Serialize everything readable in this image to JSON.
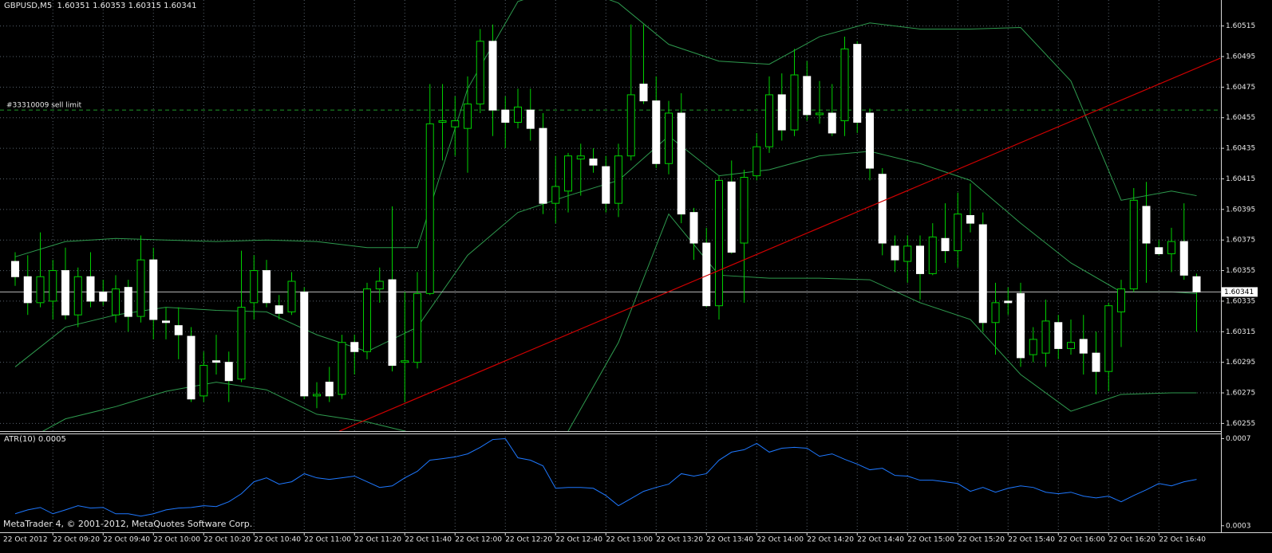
{
  "chart_data": [
    {
      "type": "candlestick",
      "title": "GBPUSD,M5  1.60351 1.60353 1.60315 1.60341",
      "categories": [
        "22 Oct 2012",
        null,
        null,
        "22 Oct 09:20",
        null,
        null,
        null,
        "22 Oct 09:40",
        null,
        null,
        null,
        "22 Oct 10:00",
        null,
        null,
        null,
        "22 Oct 10:20",
        null,
        null,
        null,
        "22 Oct 10:40",
        null,
        null,
        null,
        "22 Oct 11:00",
        null,
        null,
        null,
        "22 Oct 11:20",
        null,
        null,
        null,
        "22 Oct 11:40",
        null,
        null,
        null,
        "22 Oct 12:00",
        null,
        null,
        null,
        "22 Oct 12:20",
        null,
        null,
        null,
        "22 Oct 12:40",
        null,
        null,
        null,
        "22 Oct 13:00",
        null,
        null,
        null,
        "22 Oct 13:20",
        null,
        null,
        null,
        "22 Oct 13:40",
        null,
        null,
        null,
        "22 Oct 14:00",
        null,
        null,
        null,
        "22 Oct 14:20",
        null,
        null,
        null,
        "22 Oct 14:40",
        null,
        null,
        null,
        "22 Oct 15:00",
        null,
        null,
        null,
        "22 Oct 15:20",
        null,
        null,
        null,
        "22 Oct 15:40",
        null,
        null,
        null,
        "22 Oct 16:00",
        null,
        null,
        null,
        "22 Oct 16:20",
        null,
        null,
        null,
        "22 Oct 16:40",
        null,
        null,
        null
      ],
      "open": [
        1.60361,
        1.60351,
        1.60334,
        1.60335,
        1.60355,
        1.60326,
        1.60351,
        1.60341,
        1.60326,
        1.60344,
        1.60325,
        1.60362,
        1.60322,
        1.60319,
        1.60312,
        1.60273,
        1.60296,
        1.60295,
        1.60284,
        1.60334,
        1.60355,
        1.60332,
        1.60328,
        1.60341,
        1.60273,
        1.60282,
        1.60274,
        1.60308,
        1.60302,
        1.60343,
        1.60349,
        1.60295,
        1.60295,
        1.6034,
        1.60452,
        1.60449,
        1.60448,
        1.60464,
        1.60505,
        1.6046,
        1.60452,
        1.6046,
        1.60448,
        1.60399,
        1.60407,
        1.60428,
        1.60428,
        1.60423,
        1.60399,
        1.6043,
        1.60477,
        1.60466,
        1.60425,
        1.60458,
        1.60393,
        1.60373,
        1.60332,
        1.60413,
        1.60373,
        1.60417,
        1.60436,
        1.6047,
        1.60447,
        1.60482,
        1.60457,
        1.60458,
        1.60453,
        1.60503,
        1.60458,
        1.60418,
        1.60371,
        1.60361,
        1.60371,
        1.60353,
        1.60376,
        1.60368,
        1.60391,
        1.60385,
        1.60321,
        1.60335,
        1.6034,
        1.603,
        1.60301,
        1.60321,
        1.60304,
        1.6031,
        1.60301,
        1.60289,
        1.60328,
        1.60343,
        1.60397,
        1.6037,
        1.60366,
        1.60374,
        1.60351
      ],
      "high": [
        1.60367,
        1.60365,
        1.6038,
        1.60362,
        1.6037,
        1.60357,
        1.60367,
        1.60349,
        1.60352,
        1.60349,
        1.60378,
        1.6037,
        1.60331,
        1.60331,
        1.60318,
        1.60302,
        1.60313,
        1.60302,
        1.60368,
        1.60365,
        1.60362,
        1.60339,
        1.60354,
        1.60344,
        1.60282,
        1.60292,
        1.60313,
        1.60313,
        1.60347,
        1.60357,
        1.60397,
        1.60341,
        1.60354,
        1.60477,
        1.60477,
        1.60469,
        1.60482,
        1.60513,
        1.60516,
        1.60469,
        1.60474,
        1.60474,
        1.60458,
        1.6043,
        1.60432,
        1.60438,
        1.60435,
        1.6043,
        1.60438,
        1.60516,
        1.60516,
        1.60482,
        1.60466,
        1.60471,
        1.60396,
        1.60383,
        1.60417,
        1.60427,
        1.60421,
        1.60445,
        1.60482,
        1.60484,
        1.605,
        1.60492,
        1.60479,
        1.60477,
        1.60508,
        1.60505,
        1.60461,
        1.60422,
        1.60378,
        1.60378,
        1.60378,
        1.60386,
        1.60399,
        1.60406,
        1.60412,
        1.60393,
        1.60347,
        1.60344,
        1.60347,
        1.60318,
        1.60336,
        1.60326,
        1.60323,
        1.60326,
        1.60315,
        1.60334,
        1.60349,
        1.60409,
        1.60413,
        1.60375,
        1.60383,
        1.60399,
        1.60353
      ],
      "low": [
        1.60345,
        1.60326,
        1.60331,
        1.60323,
        1.60323,
        1.60318,
        1.60331,
        1.60332,
        1.60321,
        1.60315,
        1.60321,
        1.6031,
        1.6031,
        1.60297,
        1.60269,
        1.60269,
        1.60287,
        1.60269,
        1.60282,
        1.60323,
        1.60331,
        1.60323,
        1.60326,
        1.60271,
        1.60265,
        1.60269,
        1.60271,
        1.60287,
        1.60297,
        1.60334,
        1.60289,
        1.60269,
        1.60291,
        1.60339,
        1.60427,
        1.6043,
        1.60419,
        1.60458,
        1.60443,
        1.60435,
        1.60448,
        1.6044,
        1.60392,
        1.60386,
        1.60393,
        1.60404,
        1.60419,
        1.60393,
        1.6039,
        1.60427,
        1.60464,
        1.60422,
        1.60418,
        1.60386,
        1.60362,
        1.60331,
        1.60323,
        1.60366,
        1.60334,
        1.60414,
        1.60432,
        1.6044,
        1.60443,
        1.60453,
        1.60451,
        1.60443,
        1.60443,
        1.60445,
        1.60414,
        1.60365,
        1.60354,
        1.60347,
        1.60336,
        1.60352,
        1.6036,
        1.60357,
        1.6038,
        1.60315,
        1.603,
        1.60326,
        1.60292,
        1.60295,
        1.60292,
        1.60297,
        1.603,
        1.60287,
        1.60274,
        1.60276,
        1.60305,
        1.60341,
        1.60347,
        1.60365,
        1.60354,
        1.60349,
        1.60315
      ],
      "close": [
        1.60351,
        1.60334,
        1.60351,
        1.60355,
        1.60326,
        1.60351,
        1.60335,
        1.60335,
        1.60343,
        1.60325,
        1.60362,
        1.60323,
        1.60321,
        1.60313,
        1.60271,
        1.60293,
        1.60295,
        1.60283,
        1.60331,
        1.60355,
        1.60334,
        1.60327,
        1.60348,
        1.60273,
        1.60274,
        1.60273,
        1.60308,
        1.60302,
        1.60343,
        1.60348,
        1.60293,
        1.60296,
        1.6034,
        1.60451,
        1.60453,
        1.60453,
        1.60464,
        1.60505,
        1.6046,
        1.60452,
        1.60462,
        1.60448,
        1.60399,
        1.6041,
        1.6043,
        1.6043,
        1.60424,
        1.60399,
        1.6043,
        1.6047,
        1.60466,
        1.60425,
        1.60458,
        1.60392,
        1.60373,
        1.60332,
        1.60414,
        1.60367,
        1.60416,
        1.60436,
        1.6047,
        1.60447,
        1.60483,
        1.60457,
        1.60458,
        1.60445,
        1.605,
        1.60452,
        1.60422,
        1.60373,
        1.60362,
        1.60371,
        1.60353,
        1.60377,
        1.60368,
        1.60392,
        1.60386,
        1.60321,
        1.60334,
        1.60334,
        1.60298,
        1.6031,
        1.60322,
        1.60304,
        1.60308,
        1.60301,
        1.60289,
        1.60332,
        1.60343,
        1.60401,
        1.60373,
        1.60366,
        1.60374,
        1.60352,
        1.60341
      ],
      "up_color": "#000000",
      "down_color": "#ffffff",
      "wick_color": "#00d000",
      "bollinger": {
        "color": "#2e9a4e",
        "x": [
          0,
          4,
          8,
          12,
          16,
          20,
          24,
          28,
          32,
          36,
          40,
          44,
          48,
          52,
          56,
          60,
          64,
          68,
          72,
          76,
          80,
          84,
          88,
          92,
          94
        ],
        "upper": [
          1.60364,
          1.60374,
          1.60376,
          1.60375,
          1.60374,
          1.60375,
          1.60374,
          1.6037,
          1.6037,
          1.60474,
          1.60531,
          1.60542,
          1.6053,
          1.60503,
          1.60492,
          1.6049,
          1.60508,
          1.60517,
          1.60513,
          1.60513,
          1.60514,
          1.60479,
          1.60401,
          1.60407,
          1.60404
        ],
        "middle": [
          1.60292,
          1.60318,
          1.60326,
          1.60331,
          1.60329,
          1.60328,
          1.60313,
          1.60302,
          1.60318,
          1.60365,
          1.60393,
          1.60404,
          1.60414,
          1.60443,
          1.60417,
          1.60421,
          1.6043,
          1.60433,
          1.60425,
          1.60414,
          1.60386,
          1.6036,
          1.60341,
          1.60341,
          1.6034
        ],
        "lower": [
          1.6024,
          1.60258,
          1.60266,
          1.60276,
          1.60282,
          1.60277,
          1.60261,
          1.60256,
          1.60248,
          1.60219,
          1.60193,
          1.6025,
          1.60308,
          1.60392,
          1.60352,
          1.6035,
          1.6035,
          1.60349,
          1.60334,
          1.60323,
          1.60287,
          1.60263,
          1.60274,
          1.60275,
          1.60275
        ]
      },
      "trendline": {
        "color": "#d00000",
        "x": [
          25.8,
          95.9
        ],
        "y": [
          1.6025,
          1.60494
        ]
      },
      "order": {
        "label": "#33310009 sell limit",
        "value": 1.6046,
        "color": "#1f9a2a"
      },
      "last_price": 1.60341,
      "ylim": [
        1.6025,
        1.60532
      ],
      "yticks": [
        1.60255,
        1.60275,
        1.60295,
        1.60315,
        1.60335,
        1.60355,
        1.60375,
        1.60395,
        1.60415,
        1.60435,
        1.60455,
        1.60475,
        1.60495,
        1.60515
      ],
      "grid": true
    },
    {
      "type": "line",
      "title": "ATR(10) 0.0005",
      "color": "#1e78ff",
      "values": [
        0.000355,
        0.000373,
        0.000384,
        0.000355,
        0.000373,
        0.000392,
        0.000381,
        0.000384,
        0.000355,
        0.000355,
        0.000344,
        0.000355,
        0.000373,
        0.000381,
        0.000384,
        0.000392,
        0.000388,
        0.00041,
        0.000447,
        0.000502,
        0.00052,
        0.000491,
        0.000502,
        0.000539,
        0.00052,
        0.000513,
        0.00052,
        0.000528,
        0.000502,
        0.000476,
        0.000483,
        0.00052,
        0.00055,
        0.000601,
        0.000608,
        0.000616,
        0.00063,
        0.00066,
        0.000696,
        0.0007,
        0.000612,
        0.000601,
        0.000575,
        0.000472,
        0.000476,
        0.000476,
        0.000472,
        0.000439,
        0.000392,
        0.000425,
        0.000458,
        0.000476,
        0.000491,
        0.000539,
        0.000528,
        0.000539,
        0.000601,
        0.000638,
        0.000649,
        0.000678,
        0.000638,
        0.000656,
        0.00066,
        0.000656,
        0.000619,
        0.00063,
        0.000605,
        0.000583,
        0.000557,
        0.000564,
        0.000531,
        0.000528,
        0.000509,
        0.000509,
        0.000502,
        0.000494,
        0.000458,
        0.000476,
        0.000454,
        0.000472,
        0.000483,
        0.000476,
        0.000454,
        0.000447,
        0.000454,
        0.000436,
        0.000428,
        0.000436,
        0.00041,
        0.000439,
        0.000465,
        0.000494,
        0.000483,
        0.000502,
        0.000513
      ],
      "ylim": [
        0.00027,
        0.00072
      ],
      "yticks": [
        0.0003,
        0.0007
      ]
    }
  ],
  "copyright": "MetaTrader 4, © 2001-2012, MetaQuotes Software Corp."
}
